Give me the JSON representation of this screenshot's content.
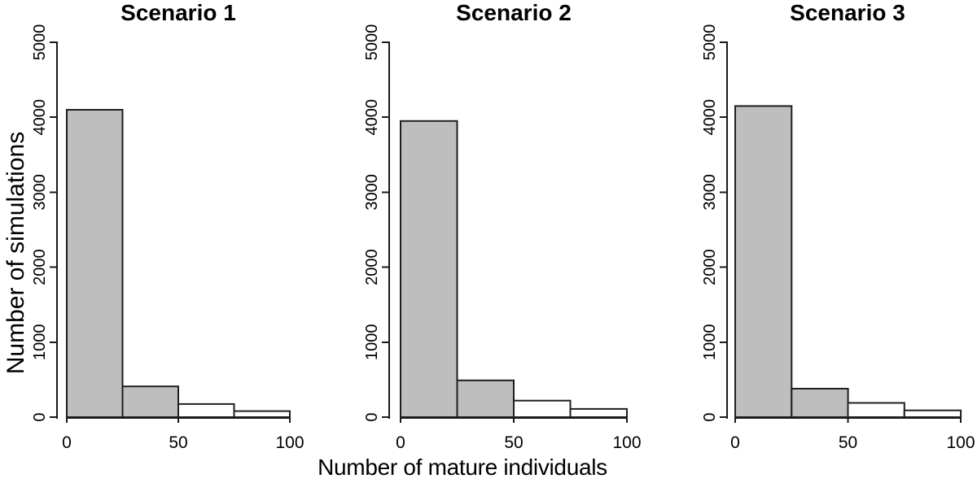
{
  "figure": {
    "background": "#ffffff",
    "bar_fill_gray": "#bebebe",
    "bar_fill_white": "#ffffff",
    "bar_stroke": "#1f1f1f",
    "axis_color": "#1a1a1a",
    "text_color": "#000000"
  },
  "shared": {
    "xlabel": "Number of mature individuals",
    "ylabel": "Number of simulations",
    "x_ticks": [
      0,
      50,
      100
    ],
    "y_ticks": [
      0,
      1000,
      2000,
      3000,
      4000,
      5000
    ],
    "xlim": [
      0,
      100
    ],
    "ylim": [
      0,
      5000
    ],
    "grid": "off",
    "legend": "none"
  },
  "chart_data": [
    {
      "type": "bar",
      "title": "Scenario 1",
      "xlabel": "Number of mature individuals",
      "ylabel": "Number of simulations",
      "xlim": [
        0,
        100
      ],
      "ylim": [
        0,
        5000
      ],
      "bins": [
        {
          "range": [
            0,
            25
          ],
          "count": 4100,
          "fill": "gray"
        },
        {
          "range": [
            25,
            50
          ],
          "count": 410,
          "fill": "gray"
        },
        {
          "range": [
            50,
            75
          ],
          "count": 175,
          "fill": "white"
        },
        {
          "range": [
            75,
            100
          ],
          "count": 80,
          "fill": "white"
        }
      ]
    },
    {
      "type": "bar",
      "title": "Scenario 2",
      "xlabel": "Number of mature individuals",
      "ylabel": "Number of simulations",
      "xlim": [
        0,
        100
      ],
      "ylim": [
        0,
        5000
      ],
      "bins": [
        {
          "range": [
            0,
            25
          ],
          "count": 3950,
          "fill": "gray"
        },
        {
          "range": [
            25,
            50
          ],
          "count": 490,
          "fill": "gray"
        },
        {
          "range": [
            50,
            75
          ],
          "count": 220,
          "fill": "white"
        },
        {
          "range": [
            75,
            100
          ],
          "count": 110,
          "fill": "white"
        }
      ]
    },
    {
      "type": "bar",
      "title": "Scenario 3",
      "xlabel": "Number of mature individuals",
      "ylabel": "Number of simulations",
      "xlim": [
        0,
        100
      ],
      "ylim": [
        0,
        5000
      ],
      "bins": [
        {
          "range": [
            0,
            25
          ],
          "count": 4150,
          "fill": "gray"
        },
        {
          "range": [
            25,
            50
          ],
          "count": 380,
          "fill": "gray"
        },
        {
          "range": [
            50,
            75
          ],
          "count": 190,
          "fill": "white"
        },
        {
          "range": [
            75,
            100
          ],
          "count": 90,
          "fill": "white"
        }
      ]
    }
  ]
}
